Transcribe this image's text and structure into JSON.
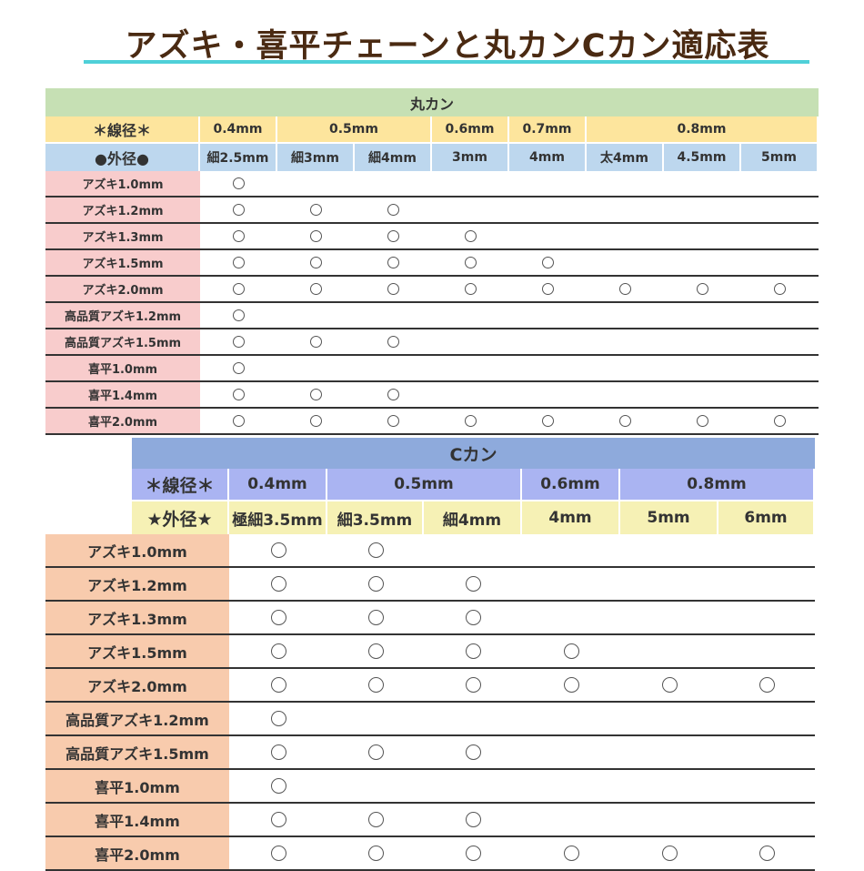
{
  "title": "アズキ・喜平チェーンと丸カンCカン適応表",
  "colors": {
    "title": "#4a2a12",
    "underline": "#4fd0d8"
  },
  "maru": {
    "title": "丸カン",
    "wire_label": "＊線径＊",
    "outer_label": "●外径●",
    "wire": [
      {
        "label": "0.4mm",
        "span": 1
      },
      {
        "label": "0.5mm",
        "span": 2
      },
      {
        "label": "0.6mm",
        "span": 1
      },
      {
        "label": "0.7mm",
        "span": 1
      },
      {
        "label": "0.8mm",
        "span": 3
      }
    ],
    "outer": [
      "細2.5mm",
      "細3mm",
      "細4mm",
      "3mm",
      "4mm",
      "太4mm",
      "4.5mm",
      "5mm"
    ],
    "rows": [
      {
        "label": "アズキ1.0mm",
        "fit": [
          1,
          0,
          0,
          0,
          0,
          0,
          0,
          0
        ]
      },
      {
        "label": "アズキ1.2mm",
        "fit": [
          1,
          1,
          1,
          0,
          0,
          0,
          0,
          0
        ]
      },
      {
        "label": "アズキ1.3mm",
        "fit": [
          1,
          1,
          1,
          1,
          0,
          0,
          0,
          0
        ]
      },
      {
        "label": "アズキ1.5mm",
        "fit": [
          1,
          1,
          1,
          1,
          1,
          0,
          0,
          0
        ]
      },
      {
        "label": "アズキ2.0mm",
        "fit": [
          1,
          1,
          1,
          1,
          1,
          1,
          1,
          1
        ]
      },
      {
        "label": "高品質アズキ1.2mm",
        "fit": [
          1,
          0,
          0,
          0,
          0,
          0,
          0,
          0
        ]
      },
      {
        "label": "高品質アズキ1.5mm",
        "fit": [
          1,
          1,
          1,
          0,
          0,
          0,
          0,
          0
        ]
      },
      {
        "label": "喜平1.0mm",
        "fit": [
          1,
          0,
          0,
          0,
          0,
          0,
          0,
          0
        ]
      },
      {
        "label": "喜平1.4mm",
        "fit": [
          1,
          1,
          1,
          0,
          0,
          0,
          0,
          0
        ]
      },
      {
        "label": "喜平2.0mm",
        "fit": [
          1,
          1,
          1,
          1,
          1,
          1,
          1,
          1
        ]
      }
    ]
  },
  "ckan": {
    "title": "Cカン",
    "wire_label": "＊線径＊",
    "outer_label": "★外径★",
    "wire": [
      {
        "label": "0.4mm",
        "span": 1
      },
      {
        "label": "0.5mm",
        "span": 2
      },
      {
        "label": "0.6mm",
        "span": 1
      },
      {
        "label": "0.8mm",
        "span": 2
      }
    ],
    "outer": [
      "極細3.5mm",
      "細3.5mm",
      "細4mm",
      "4mm",
      "5mm",
      "6mm"
    ],
    "rows": [
      {
        "label": "アズキ1.0mm",
        "fit": [
          1,
          1,
          0,
          0,
          0,
          0
        ]
      },
      {
        "label": "アズキ1.2mm",
        "fit": [
          1,
          1,
          1,
          0,
          0,
          0
        ]
      },
      {
        "label": "アズキ1.3mm",
        "fit": [
          1,
          1,
          1,
          0,
          0,
          0
        ]
      },
      {
        "label": "アズキ1.5mm",
        "fit": [
          1,
          1,
          1,
          1,
          0,
          0
        ]
      },
      {
        "label": "アズキ2.0mm",
        "fit": [
          1,
          1,
          1,
          1,
          1,
          1
        ]
      },
      {
        "label": "高品質アズキ1.2mm",
        "fit": [
          1,
          0,
          0,
          0,
          0,
          0
        ]
      },
      {
        "label": "高品質アズキ1.5mm",
        "fit": [
          1,
          1,
          1,
          0,
          0,
          0
        ]
      },
      {
        "label": "喜平1.0mm",
        "fit": [
          1,
          0,
          0,
          0,
          0,
          0
        ]
      },
      {
        "label": "喜平1.4mm",
        "fit": [
          1,
          1,
          1,
          0,
          0,
          0
        ]
      },
      {
        "label": "喜平2.0mm",
        "fit": [
          1,
          1,
          1,
          1,
          1,
          1
        ]
      }
    ]
  }
}
